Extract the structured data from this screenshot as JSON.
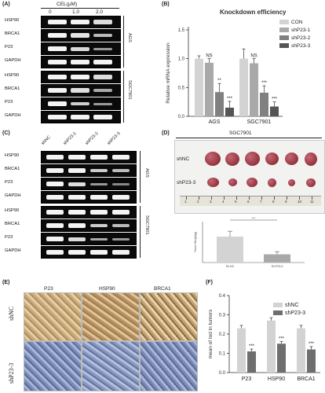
{
  "panel_labels": {
    "A": "(A)",
    "B": "(B)",
    "C": "(C)",
    "D": "(D)",
    "E": "(E)",
    "F": "(F)"
  },
  "panel_a": {
    "header": "CEL(μM)",
    "doses": [
      "0",
      "1.0",
      "2.0"
    ],
    "rows_top": [
      "HSP90",
      "BRCA1",
      "P23",
      "GAPDH"
    ],
    "rows_bottom": [
      "HSP90",
      "BRCA1",
      "P23",
      "GAPDH"
    ],
    "cell_top": "AGS",
    "cell_bottom": "SGC7901"
  },
  "panel_c": {
    "columns": [
      "shNC",
      "shP23-1",
      "shP23-2",
      "shP23-3"
    ],
    "rows_top": [
      "HSP90",
      "BRCA1",
      "P23",
      "GAPDH"
    ],
    "rows_bottom": [
      "HSP90",
      "BRCA1",
      "P23",
      "GAPDH"
    ],
    "cell_top": "AGS",
    "cell_bottom": "SGC7901"
  },
  "panel_d": {
    "title": "SGC7901",
    "row_labels": [
      "shNC",
      "shP23-3"
    ],
    "ruler_ticks": [
      "1",
      "2",
      "3",
      "4",
      "5",
      "6",
      "7",
      "8",
      "9",
      "10",
      "11"
    ],
    "significance": "***"
  },
  "panel_e": {
    "columns": [
      "P23",
      "HSP90",
      "BRCA1"
    ],
    "rows": [
      "shNC",
      "shP23-3"
    ]
  },
  "colors": {
    "con": "#d3d3d3",
    "sh1": "#a9a9a9",
    "sh2": "#808080",
    "sh3": "#555555",
    "shNC_f": "#d3d3d3",
    "shP23_f": "#6e6e6e",
    "tumor": "#9c3a44",
    "ihc_brown": "#c4a678",
    "ihc_blue": "#7f8fb8"
  },
  "chart_data": [
    {
      "panel": "B",
      "type": "bar",
      "title": "Knockdown efficiency",
      "ylabel": "Relative mRNA expression",
      "xlabel": "",
      "categories": [
        "AGS",
        "SGC7901"
      ],
      "ylim": [
        0.0,
        1.5
      ],
      "yticks": [
        "0.0",
        "0.5",
        "1.0",
        "1.5"
      ],
      "legend_position": "top-right",
      "series": [
        {
          "name": "CON",
          "values": [
            1.0,
            1.0
          ],
          "errors": [
            0.05,
            0.17
          ],
          "sig": [
            "",
            ""
          ]
        },
        {
          "name": "shP23-1",
          "values": [
            0.93,
            0.92
          ],
          "errors": [
            0.07,
            0.08
          ],
          "sig": [
            "NS",
            "NS"
          ]
        },
        {
          "name": "shP23-2",
          "values": [
            0.42,
            0.41
          ],
          "errors": [
            0.15,
            0.12
          ],
          "sig": [
            "**",
            "***"
          ]
        },
        {
          "name": "shP23-3",
          "values": [
            0.15,
            0.17
          ],
          "errors": [
            0.11,
            0.08
          ],
          "sig": [
            "***",
            "***"
          ]
        }
      ]
    },
    {
      "panel": "D",
      "type": "bar",
      "title": "",
      "ylabel": "Tumor Weight(g)",
      "xlabel": "",
      "categories": [
        "Sh-NC",
        "Sh-P23-3"
      ],
      "ylim": [
        0.0,
        1.5
      ],
      "values": [
        0.95,
        0.3
      ],
      "errors": [
        0.2,
        0.1
      ],
      "significance": "***"
    },
    {
      "panel": "F",
      "type": "bar",
      "title": "",
      "ylabel": "mean of Iod in tumors",
      "xlabel": "",
      "categories": [
        "P23",
        "HSP90",
        "BRCA1"
      ],
      "ylim": [
        0.0,
        0.4
      ],
      "yticks": [
        "0.0",
        "0.1",
        "0.2",
        "0.3",
        "0.4"
      ],
      "legend_position": "top-right",
      "series": [
        {
          "name": "shNC",
          "values": [
            0.23,
            0.27,
            0.23
          ],
          "errors": [
            0.015,
            0.015,
            0.015
          ],
          "sig": [
            "",
            "",
            ""
          ]
        },
        {
          "name": "shP23-3",
          "values": [
            0.11,
            0.15,
            0.12
          ],
          "errors": [
            0.012,
            0.012,
            0.015
          ],
          "sig": [
            "***",
            "***",
            "***"
          ]
        }
      ]
    }
  ]
}
